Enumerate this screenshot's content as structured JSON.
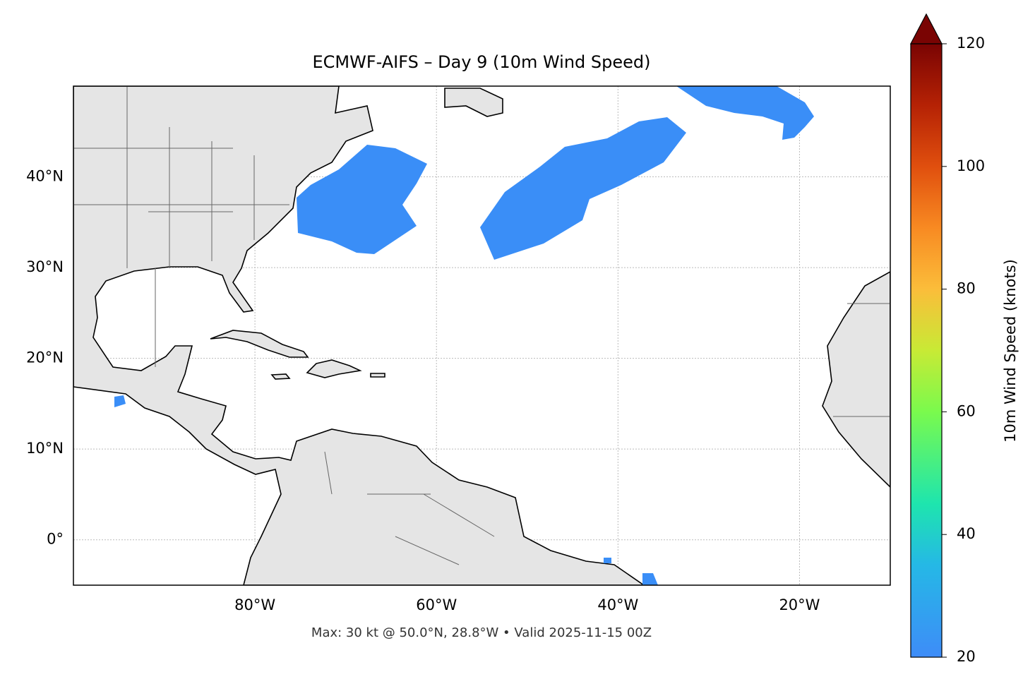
{
  "chart_data": {
    "type": "map",
    "title": "ECMWF-AIFS – Day 9 (10m Wind Speed)",
    "footer": "Max: 30 kt @ 50.0°N, 28.8°W • Valid 2025-11-15 00Z",
    "xlim": [
      -100,
      -10
    ],
    "ylim": [
      -5,
      50
    ],
    "xticks": [
      {
        "value": -80,
        "label": "80°W"
      },
      {
        "value": -60,
        "label": "60°W"
      },
      {
        "value": -40,
        "label": "40°W"
      },
      {
        "value": -20,
        "label": "20°W"
      }
    ],
    "yticks": [
      {
        "value": 0,
        "label": "0°"
      },
      {
        "value": 10,
        "label": "10°N"
      },
      {
        "value": 20,
        "label": "20°N"
      },
      {
        "value": 30,
        "label": "30°N"
      },
      {
        "value": 40,
        "label": "40°N"
      }
    ],
    "grid": true,
    "colorbar": {
      "label": "10m Wind Speed (knots)",
      "lim": [
        20,
        120
      ],
      "ticks": [
        20,
        40,
        60,
        80,
        100,
        120
      ]
    }
  }
}
